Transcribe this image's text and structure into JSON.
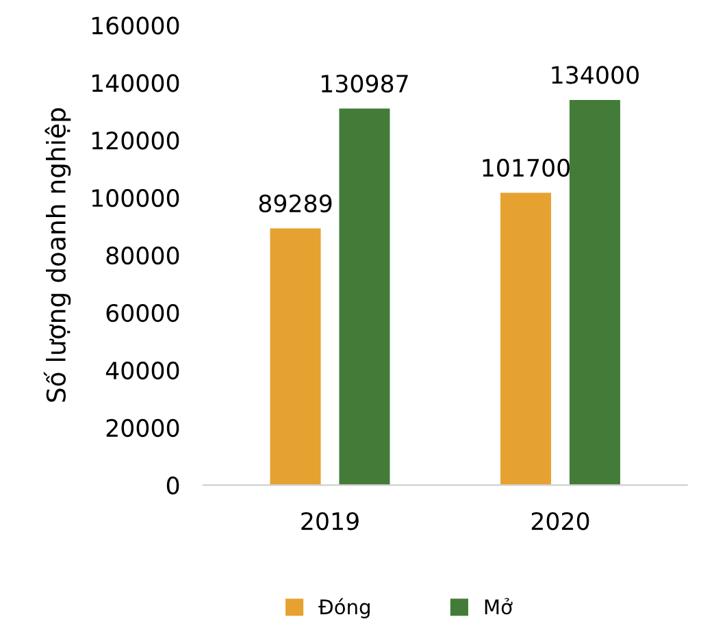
{
  "chart_data": {
    "type": "bar",
    "ylabel": "Số lượng doanh nghiệp",
    "categories": [
      "2019",
      "2020"
    ],
    "series": [
      {
        "name": "Đóng",
        "color": "#e6a230",
        "values": [
          89289,
          101700
        ]
      },
      {
        "name": "Mở",
        "color": "#437c38",
        "values": [
          130987,
          134000
        ]
      }
    ],
    "ylim": [
      0,
      160000
    ],
    "yticks": [
      0,
      20000,
      40000,
      60000,
      80000,
      100000,
      120000,
      140000,
      160000
    ],
    "grid": false,
    "legend": "bottom",
    "data_labels": true
  }
}
